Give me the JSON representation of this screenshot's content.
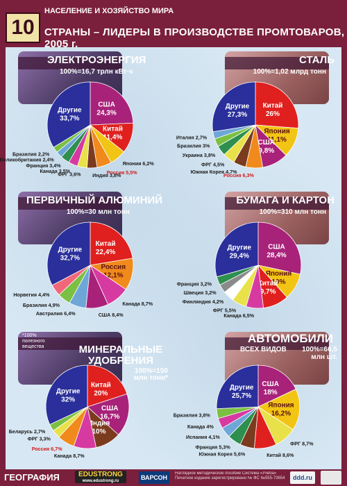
{
  "header": {
    "number": "10",
    "section": "НАСЕЛЕНИЕ И ХОЗЯЙСТВО МИРА",
    "title": "СТРАНЫ – ЛИДЕРЫ В ПРОИЗВОДСТВЕ ПРОМТОВАРОВ, 2005 г."
  },
  "footer": {
    "brand": "ГЕОГРАФИЯ",
    "edustrong": "EDUSTRONG",
    "edustrong_site": "www.edustrong.ru",
    "varson": "ВАРСОН",
    "note": "Наглядное методическое пособие Система «Учеба» Печатное издание зарегистрировано № ФС №555-73654",
    "logo": "ddd.ru"
  },
  "chart_data": [
    {
      "type": "pie",
      "title": "ЭЛЕКТРОЭНЕРГИЯ",
      "subtitle": "100%=16,7 трлн кВт·ч",
      "slices": [
        {
          "label": "США",
          "value": 24.3,
          "text": "24,3%",
          "color": "#a8227a"
        },
        {
          "label": "Китай",
          "value": 11.4,
          "text": "11,4%",
          "color": "#e0201e"
        },
        {
          "label": "Япония",
          "value": 6.2,
          "text": "6,2%",
          "color": "#f2c515"
        },
        {
          "label": "Россия",
          "value": 5.5,
          "text": "5,5%",
          "color": "#f08a1c"
        },
        {
          "label": "Индия",
          "value": 3.8,
          "text": "3,8%",
          "color": "#7b3b1e"
        },
        {
          "label": "ФРГ",
          "value": 3.6,
          "text": "3,6%",
          "color": "#e8e14a"
        },
        {
          "label": "Канада",
          "value": 3.5,
          "text": "3,5%",
          "color": "#d63aa1"
        },
        {
          "label": "Франция",
          "value": 3.4,
          "text": "3,4%",
          "color": "#2e8f4e"
        },
        {
          "label": "Великобритания",
          "value": 2.4,
          "text": "2,4%",
          "color": "#6ea6d8"
        },
        {
          "label": "Бразилия",
          "value": 2.2,
          "text": "2,2%",
          "color": "#7bc043"
        },
        {
          "label": "Другие",
          "value": 33.7,
          "text": "33,7%",
          "color": "#2a2f9b"
        }
      ]
    },
    {
      "type": "pie",
      "title": "СТАЛЬ",
      "subtitle": "100%=1,02 млрд тонн",
      "slices": [
        {
          "label": "Китай",
          "value": 26.0,
          "text": "26%",
          "color": "#e0201e"
        },
        {
          "label": "Япония",
          "value": 11.1,
          "text": "11,1%",
          "color": "#f2c515"
        },
        {
          "label": "США",
          "value": 9.8,
          "text": "9,8%",
          "color": "#a8227a"
        },
        {
          "label": "Россия",
          "value": 6.3,
          "text": "6,3%",
          "color": "#f08a1c"
        },
        {
          "label": "Южная Корея",
          "value": 4.7,
          "text": "4,7%",
          "color": "#7b3b1e"
        },
        {
          "label": "ФРГ",
          "value": 4.5,
          "text": "4,5%",
          "color": "#e8e14a"
        },
        {
          "label": "Украина",
          "value": 3.8,
          "text": "3,8%",
          "color": "#2e8f4e"
        },
        {
          "label": "Бразилия",
          "value": 3.0,
          "text": "3%",
          "color": "#7bc043"
        },
        {
          "label": "Италия",
          "value": 2.7,
          "text": "2,7%",
          "color": "#6ea6d8"
        },
        {
          "label": "Другие",
          "value": 27.3,
          "text": "27,3%",
          "color": "#2a2f9b"
        }
      ]
    },
    {
      "type": "pie",
      "title": "ПЕРВИЧНЫЙ АЛЮМИНИЙ",
      "subtitle": "100%=30 млн тонн",
      "slices": [
        {
          "label": "Китай",
          "value": 22.4,
          "text": "22,4%",
          "color": "#e0201e"
        },
        {
          "label": "Россия",
          "value": 12.1,
          "text": "12,1%",
          "color": "#f08a1c"
        },
        {
          "label": "Канада",
          "value": 8.7,
          "text": "8,7%",
          "color": "#d63aa1"
        },
        {
          "label": "США",
          "value": 8.4,
          "text": "8,4%",
          "color": "#a8227a"
        },
        {
          "label": "Австралия",
          "value": 6.4,
          "text": "6,4%",
          "color": "#6ea6d8"
        },
        {
          "label": "Бразилия",
          "value": 4.9,
          "text": "4,9%",
          "color": "#7bc043"
        },
        {
          "label": "Норвегия",
          "value": 4.4,
          "text": "4,4%",
          "color": "#f2677a"
        },
        {
          "label": "Другие",
          "value": 32.7,
          "text": "32,7%",
          "color": "#2a2f9b"
        }
      ]
    },
    {
      "type": "pie",
      "title": "БУМАГА И КАРТОН",
      "subtitle": "100%=310 млн тонн",
      "slices": [
        {
          "label": "США",
          "value": 28.4,
          "text": "28,4%",
          "color": "#a8227a"
        },
        {
          "label": "Япония",
          "value": 10.0,
          "text": "10%",
          "color": "#f2c515"
        },
        {
          "label": "Китай",
          "value": 9.7,
          "text": "9,7%",
          "color": "#e0201e"
        },
        {
          "label": "Канада",
          "value": 6.5,
          "text": "6,5%",
          "color": "#d63aa1"
        },
        {
          "label": "ФРГ",
          "value": 5.5,
          "text": "5,5%",
          "color": "#e8e14a"
        },
        {
          "label": "Финляндия",
          "value": 4.2,
          "text": "4,2%",
          "color": "#ffffff"
        },
        {
          "label": "Швеция",
          "value": 3.2,
          "text": "3,2%",
          "color": "#8a8a8a"
        },
        {
          "label": "Франция",
          "value": 3.2,
          "text": "3,2%",
          "color": "#2e8f4e"
        },
        {
          "label": "Другие",
          "value": 29.4,
          "text": "29,4%",
          "color": "#2a2f9b"
        }
      ]
    },
    {
      "type": "pie",
      "title": "МИНЕРАЛЬНЫЕ УДОБРЕНИЯ",
      "subtitle": "100%=150 млн тонн*",
      "note": "*100% полезного вещества",
      "slices": [
        {
          "label": "Китай",
          "value": 20.0,
          "text": "20%",
          "color": "#e0201e"
        },
        {
          "label": "США",
          "value": 16.7,
          "text": "16,7%",
          "color": "#a8227a"
        },
        {
          "label": "Индия",
          "value": 10.0,
          "text": "10%",
          "color": "#7b3b1e"
        },
        {
          "label": "Канада",
          "value": 8.7,
          "text": "8,7%",
          "color": "#d63aa1"
        },
        {
          "label": "Россия",
          "value": 6.7,
          "text": "6,7%",
          "color": "#f08a1c"
        },
        {
          "label": "ФРГ",
          "value": 3.3,
          "text": "3,3%",
          "color": "#e8e14a"
        },
        {
          "label": "Беларусь",
          "value": 2.7,
          "text": "2,7%",
          "color": "#7bc043"
        },
        {
          "label": "Другие",
          "value": 32.0,
          "text": "32%",
          "color": "#2a2f9b"
        }
      ]
    },
    {
      "type": "pie",
      "title": "АВТОМОБИЛИ",
      "subtitle_lead": "ВСЕХ ВИДОВ",
      "subtitle": "100%=66,5 млн шт.",
      "slices": [
        {
          "label": "США",
          "value": 18.0,
          "text": "18%",
          "color": "#a8227a"
        },
        {
          "label": "Япония",
          "value": 16.2,
          "text": "16,2%",
          "color": "#f2c515"
        },
        {
          "label": "ФРГ",
          "value": 8.7,
          "text": "8,7%",
          "color": "#e8e14a"
        },
        {
          "label": "Китай",
          "value": 8.6,
          "text": "8,6%",
          "color": "#e0201e"
        },
        {
          "label": "Южная Корея",
          "value": 5.6,
          "text": "5,6%",
          "color": "#7b3b1e"
        },
        {
          "label": "Франция",
          "value": 5.3,
          "text": "5,3%",
          "color": "#2e8f4e"
        },
        {
          "label": "Испания",
          "value": 4.1,
          "text": "4,1%",
          "color": "#6ea6d8"
        },
        {
          "label": "Канада",
          "value": 4.0,
          "text": "4%",
          "color": "#d63aa1"
        },
        {
          "label": "Бразилия",
          "value": 3.8,
          "text": "3,8%",
          "color": "#7bc043"
        },
        {
          "label": "Другие",
          "value": 25.7,
          "text": "25,7%",
          "color": "#2a2f9b"
        }
      ]
    }
  ]
}
